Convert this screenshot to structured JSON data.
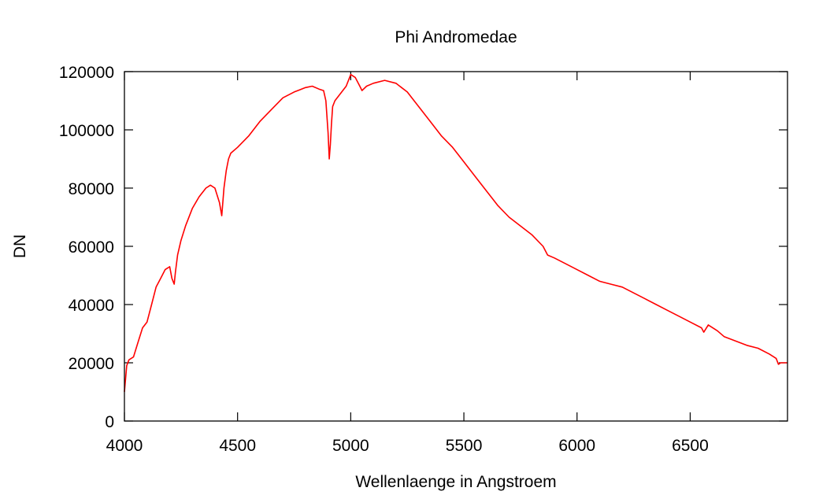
{
  "chart_data": {
    "type": "line",
    "title": "Phi Andromedae",
    "xlabel": "Wellenlaenge in Angstroem",
    "ylabel": "DN",
    "xlim": [
      4000,
      6930
    ],
    "ylim": [
      0,
      120000
    ],
    "xticks": [
      4000,
      4500,
      5000,
      5500,
      6000,
      6500
    ],
    "xtick_labels": [
      "4000",
      "4500",
      "5000",
      "5500",
      "6000",
      "6500"
    ],
    "yticks": [
      0,
      20000,
      40000,
      60000,
      80000,
      100000,
      120000
    ],
    "ytick_labels": [
      "0",
      "20000",
      "40000",
      "60000",
      "80000",
      "100000",
      "120000"
    ],
    "grid": false,
    "series_color": "#ff0000",
    "series": [
      {
        "x": [
          4000,
          4010,
          4020,
          4040,
          4060,
          4080,
          4100,
          4120,
          4140,
          4160,
          4180,
          4200,
          4210,
          4220,
          4225,
          4235,
          4250,
          4270,
          4300,
          4330,
          4360,
          4380,
          4400,
          4420,
          4430,
          4440,
          4450,
          4460,
          4470,
          4500,
          4550,
          4600,
          4650,
          4700,
          4750,
          4800,
          4830,
          4860,
          4880,
          4890,
          4900,
          4905,
          4910,
          4915,
          4920,
          4930,
          4950,
          4980,
          5000,
          5020,
          5040,
          5050,
          5070,
          5100,
          5150,
          5200,
          5250,
          5300,
          5350,
          5400,
          5450,
          5500,
          5550,
          5600,
          5650,
          5700,
          5750,
          5800,
          5850,
          5870,
          5900,
          5950,
          6000,
          6050,
          6100,
          6150,
          6200,
          6250,
          6300,
          6350,
          6400,
          6450,
          6500,
          6550,
          6560,
          6580,
          6620,
          6650,
          6700,
          6750,
          6800,
          6850,
          6880,
          6890,
          6900,
          6930
        ],
        "y": [
          10000,
          19000,
          21000,
          22000,
          27000,
          32000,
          34000,
          40000,
          46000,
          49000,
          52000,
          53000,
          49000,
          47000,
          51000,
          57000,
          62000,
          67000,
          73000,
          77000,
          80000,
          81000,
          80000,
          75000,
          70500,
          80000,
          86000,
          90000,
          92000,
          94000,
          98000,
          103000,
          107000,
          111000,
          113000,
          114500,
          115000,
          114000,
          113500,
          110000,
          99000,
          90000,
          95000,
          102000,
          108000,
          110000,
          112000,
          115000,
          119000,
          118000,
          115000,
          113500,
          115000,
          116000,
          117000,
          116000,
          113000,
          108000,
          103000,
          98000,
          94000,
          89000,
          84000,
          79000,
          74000,
          70000,
          67000,
          64000,
          60000,
          57000,
          56000,
          54000,
          52000,
          50000,
          48000,
          47000,
          46000,
          44000,
          42000,
          40000,
          38000,
          36000,
          34000,
          32000,
          30500,
          33000,
          31000,
          29000,
          27500,
          26000,
          25000,
          23000,
          21500,
          19500,
          20000,
          20000
        ]
      }
    ]
  }
}
